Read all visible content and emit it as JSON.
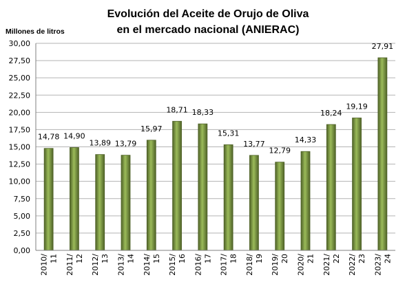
{
  "chart_data": {
    "type": "bar",
    "title_lines": [
      "Evolución del Aceite de Orujo de Oliva",
      "en el mercado nacional (ANIERAC)"
    ],
    "ylabel": "Millones de litros",
    "xlabel": "",
    "ylim": [
      0,
      30
    ],
    "ytick_step": 2.5,
    "yticks": [
      "0,00",
      "2,50",
      "5,00",
      "7,50",
      "10,00",
      "12,50",
      "15,00",
      "17,50",
      "20,00",
      "22,50",
      "25,00",
      "27,50",
      "30,00"
    ],
    "grid": true,
    "categories": [
      [
        "2010/",
        "11"
      ],
      [
        "2011/",
        "12"
      ],
      [
        "2012/",
        "13"
      ],
      [
        "2013/",
        "14"
      ],
      [
        "2014/",
        "15"
      ],
      [
        "2015/",
        "16"
      ],
      [
        "2016/",
        "17"
      ],
      [
        "2017/",
        "18"
      ],
      [
        "2018/",
        "19"
      ],
      [
        "2019/",
        "20"
      ],
      [
        "2020/",
        "21"
      ],
      [
        "2021/",
        "22"
      ],
      [
        "2022/",
        "23"
      ],
      [
        "2023/",
        "24"
      ]
    ],
    "values": [
      14.78,
      14.9,
      13.89,
      13.79,
      15.97,
      18.71,
      18.33,
      15.31,
      13.77,
      12.79,
      14.33,
      18.24,
      19.19,
      27.91
    ],
    "value_labels": [
      "14,78",
      "14,90",
      "13,89",
      "13,79",
      "15,97",
      "18,71",
      "18,33",
      "15,31",
      "13,77",
      "12,79",
      "14,33",
      "18,24",
      "19,19",
      "27,91"
    ],
    "colors": {
      "bar": "#77933c",
      "bar_light": "#9bbb59",
      "bar_dark": "#4f6228"
    }
  }
}
